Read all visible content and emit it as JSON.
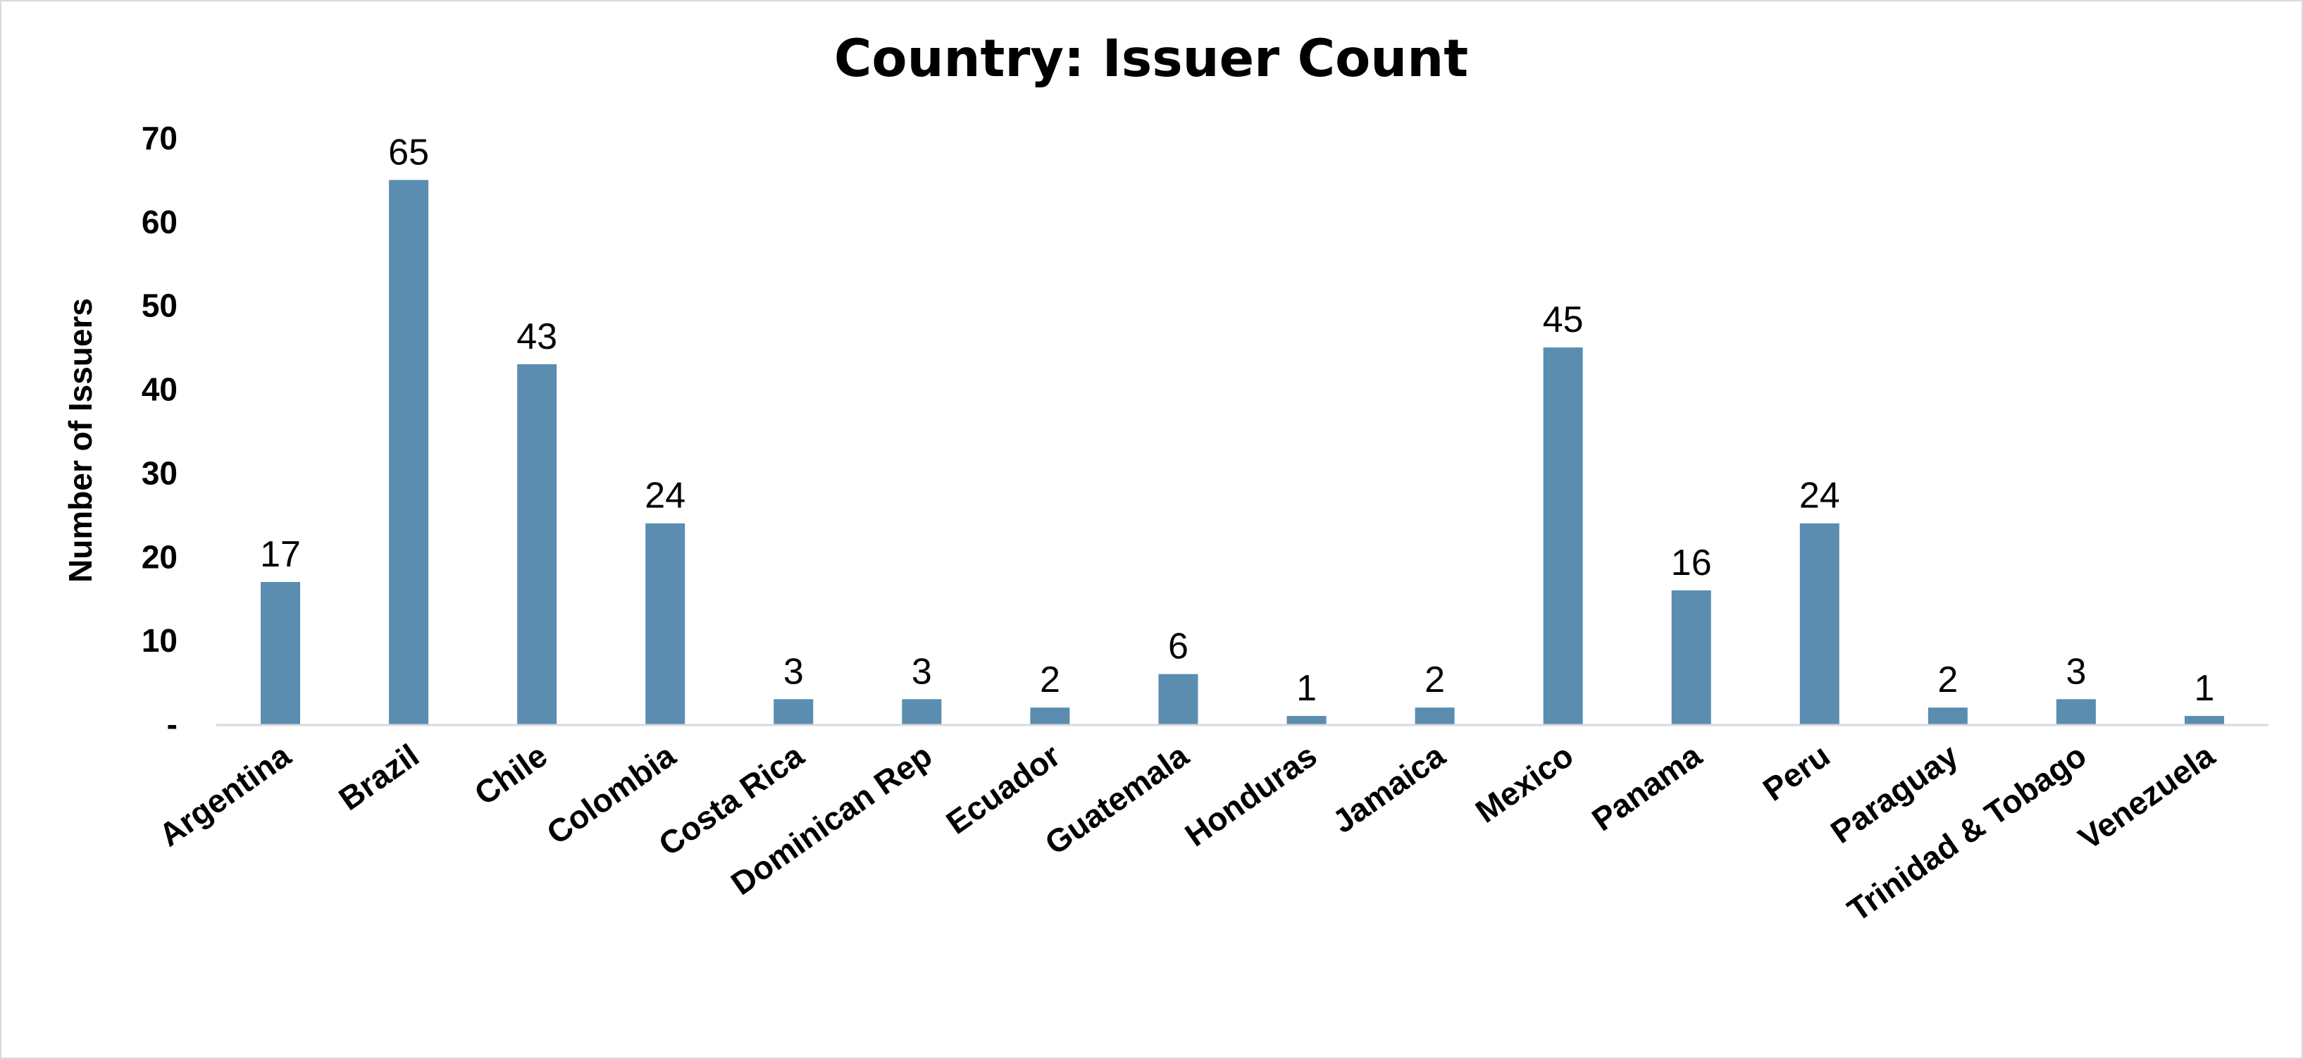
{
  "chart_data": {
    "type": "bar",
    "title": "Country: Issuer Count",
    "xlabel": "",
    "ylabel": "Number of Issuers",
    "ylim": [
      0,
      70
    ],
    "yticks": [
      0,
      10,
      20,
      30,
      40,
      50,
      60,
      70
    ],
    "ytick_labels": [
      "-",
      "10",
      "20",
      "30",
      "40",
      "50",
      "60",
      "70"
    ],
    "categories": [
      "Argentina",
      "Brazil",
      "Chile",
      "Colombia",
      "Costa Rica",
      "Dominican Rep",
      "Ecuador",
      "Guatemala",
      "Honduras",
      "Jamaica",
      "Mexico",
      "Panama",
      "Peru",
      "Paraguay",
      "Trinidad & Tobago",
      "Venezuela"
    ],
    "values": [
      17,
      65,
      43,
      24,
      3,
      3,
      2,
      6,
      1,
      2,
      45,
      16,
      24,
      2,
      3,
      1
    ],
    "data_labels": true,
    "grid": false,
    "legend": "none",
    "bar_color": "#5a8db0",
    "axis_color": "#d9d9d9"
  }
}
